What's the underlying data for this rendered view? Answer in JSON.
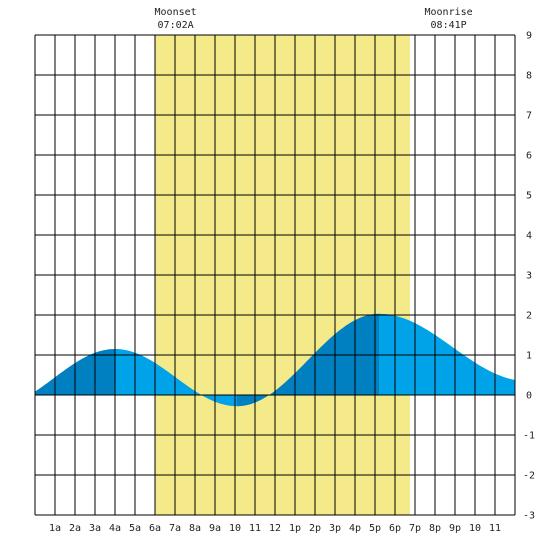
{
  "chart_data": {
    "type": "area",
    "title": "",
    "xlabel": "",
    "ylabel": "",
    "ylim": [
      -3,
      9
    ],
    "xlim": [
      0,
      24
    ],
    "x_tick_labels": [
      "1a",
      "2a",
      "3a",
      "4a",
      "5a",
      "6a",
      "7a",
      "8a",
      "9a",
      "10",
      "11",
      "12",
      "1p",
      "2p",
      "3p",
      "4p",
      "5p",
      "6p",
      "7p",
      "8p",
      "9p",
      "10",
      "11"
    ],
    "y_tick_labels": [
      "9",
      "8",
      "7",
      "6",
      "5",
      "4",
      "3",
      "2",
      "1",
      "0",
      "-1",
      "-2",
      "-3"
    ],
    "grid": true,
    "daylight_span": {
      "start_hour": 6.0,
      "end_hour": 18.75
    },
    "annotations": [
      {
        "name": "moonset",
        "label": "Moonset",
        "time": "07:02A",
        "hour": 7.03
      },
      {
        "name": "moonrise",
        "label": "Moonrise",
        "time": "08:41P",
        "hour": 20.68
      }
    ],
    "tide_extrema": [
      {
        "hour": -2.1,
        "height": -0.3
      },
      {
        "hour": 4.0,
        "height": 1.15
      },
      {
        "hour": 10.1,
        "height": -0.28
      },
      {
        "hour": 17.2,
        "height": 2.03
      },
      {
        "hour": 24.6,
        "height": 0.35
      }
    ],
    "series": [
      {
        "values_hour": [
          0,
          1,
          2,
          3,
          4,
          5,
          6,
          7,
          8,
          9,
          10,
          11,
          12,
          13,
          14,
          15,
          16,
          17,
          18,
          19,
          20,
          21,
          22,
          23,
          24
        ],
        "values_height": [
          0.42,
          0.62,
          0.9,
          1.08,
          1.15,
          1.07,
          0.77,
          0.43,
          0.11,
          -0.13,
          -0.28,
          -0.2,
          0.18,
          0.72,
          1.27,
          1.72,
          1.97,
          2.03,
          1.94,
          1.68,
          1.35,
          1.0,
          0.7,
          0.47,
          0.38
        ]
      }
    ]
  },
  "colors": {
    "background": "#ffffff",
    "daylight": "#f5ea8a",
    "tide_light": "#00a2e8",
    "tide_dark": "#0080c0",
    "grid": "#000000"
  }
}
